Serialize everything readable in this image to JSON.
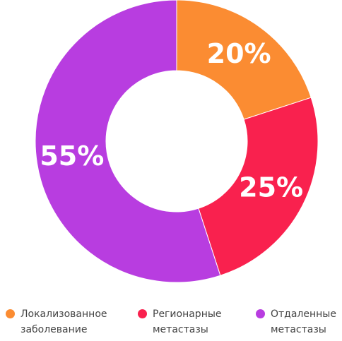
{
  "chart_data": {
    "type": "donut",
    "categories": [
      "Локализованное заболевание",
      "Регионарные метастазы",
      "Отдаленные метастазы"
    ],
    "values": [
      20,
      25,
      55
    ],
    "value_labels": [
      "20%",
      "25%",
      "55%"
    ],
    "colors": [
      "#fb8c32",
      "#f9214e",
      "#b83de0"
    ]
  }
}
